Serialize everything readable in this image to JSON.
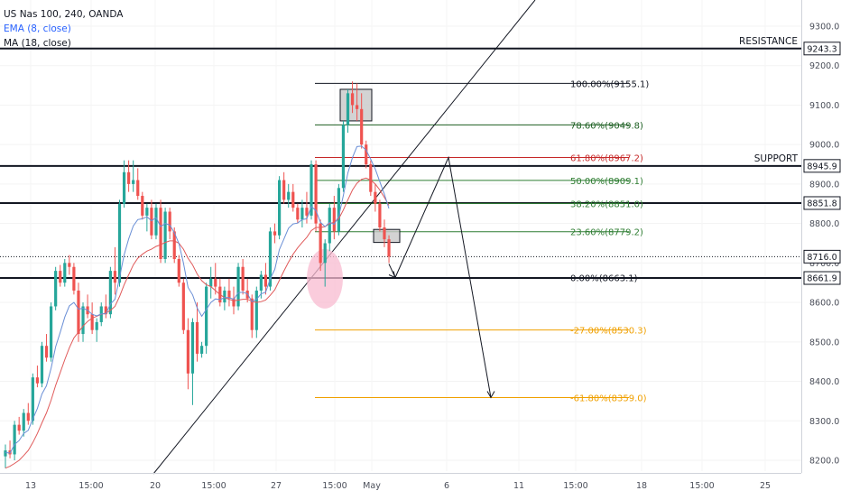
{
  "header": {
    "symbol": "US Nas 100, 240, OANDA",
    "indicator_ema": "EMA (8, close)",
    "indicator_ma": "MA (18, close)"
  },
  "colors": {
    "bull": "#26a69a",
    "bear": "#ef5350",
    "ema": "#6a8fd6",
    "ma": "#e05a5a",
    "fib_100": "#131722",
    "fib_786": "#1b5e20",
    "fib_618": "#c62828",
    "fib_50": "#2e7d32",
    "fib_382": "#2e7d32",
    "fib_236": "#2e7d32",
    "fib_0": "#131722",
    "fib_ext": "#f0a000",
    "highlight": "#f8bbd0"
  },
  "chart_data": {
    "type": "candlestick",
    "y_axis": {
      "ylim": [
        8180,
        9360
      ],
      "ticks": [
        "8200.0",
        "8300.0",
        "8400.0",
        "8500.0",
        "8600.0",
        "8700.0",
        "8800.0",
        "8900.0",
        "9000.0",
        "9100.0",
        "9200.0",
        "9300.0"
      ]
    },
    "x_axis": {
      "ticks": [
        "13",
        "15:00",
        "20",
        "15:00",
        "27",
        "15:00",
        "May",
        "6",
        "11",
        "15:00",
        "18",
        "15:00",
        "25"
      ]
    },
    "price_labels": [
      "9243.3",
      "8945.9",
      "8851.8",
      "8716.0",
      "8661.9"
    ],
    "horizontal_levels": [
      {
        "label": "RESISTANCE",
        "price": 9243.3
      },
      {
        "label": "SUPPORT",
        "price": 8945.9
      },
      {
        "label": "",
        "price": 8851.8
      },
      {
        "label": "",
        "price": 8661.9
      }
    ],
    "last_price": 8716.0,
    "fibonacci": [
      {
        "label": "100.00%(9155.1)",
        "price": 9155.1
      },
      {
        "label": "78.60%(9049.8)",
        "price": 9049.8
      },
      {
        "label": "61.80%(8967.2)",
        "price": 8967.2
      },
      {
        "label": "50.00%(8909.1)",
        "price": 8909.1
      },
      {
        "label": "38.20%(8851.0)",
        "price": 8851.0
      },
      {
        "label": "23.60%(8779.2)",
        "price": 8779.2
      },
      {
        "label": "0.00%(8663.1)",
        "price": 8663.1
      },
      {
        "label": "-27.00%(8530.3)",
        "price": 8530.3
      },
      {
        "label": "-61.80%(8359.0)",
        "price": 8359.0
      }
    ],
    "projection": [
      8663.1,
      8967.2,
      8359.0
    ],
    "candles": [
      [
        8210,
        8240,
        8180,
        8225
      ],
      [
        8225,
        8250,
        8205,
        8215
      ],
      [
        8215,
        8300,
        8200,
        8290
      ],
      [
        8290,
        8310,
        8265,
        8275
      ],
      [
        8275,
        8330,
        8260,
        8320
      ],
      [
        8320,
        8345,
        8290,
        8300
      ],
      [
        8300,
        8420,
        8290,
        8410
      ],
      [
        8410,
        8440,
        8385,
        8395
      ],
      [
        8395,
        8500,
        8385,
        8490
      ],
      [
        8490,
        8520,
        8450,
        8460
      ],
      [
        8460,
        8600,
        8450,
        8590
      ],
      [
        8590,
        8690,
        8580,
        8680
      ],
      [
        8680,
        8695,
        8640,
        8650
      ],
      [
        8650,
        8710,
        8640,
        8700
      ],
      [
        8700,
        8720,
        8670,
        8690
      ],
      [
        8690,
        8700,
        8620,
        8630
      ],
      [
        8630,
        8650,
        8500,
        8520
      ],
      [
        8520,
        8600,
        8500,
        8590
      ],
      [
        8590,
        8620,
        8560,
        8570
      ],
      [
        8570,
        8600,
        8520,
        8530
      ],
      [
        8530,
        8560,
        8500,
        8550
      ],
      [
        8550,
        8600,
        8540,
        8590
      ],
      [
        8590,
        8620,
        8560,
        8570
      ],
      [
        8570,
        8690,
        8560,
        8680
      ],
      [
        8680,
        8740,
        8620,
        8650
      ],
      [
        8650,
        8860,
        8640,
        8850
      ],
      [
        8850,
        8960,
        8840,
        8930
      ],
      [
        8930,
        8960,
        8880,
        8900
      ],
      [
        8900,
        8960,
        8880,
        8910
      ],
      [
        8910,
        8940,
        8860,
        8870
      ],
      [
        8870,
        8880,
        8810,
        8820
      ],
      [
        8820,
        8850,
        8780,
        8840
      ],
      [
        8840,
        8860,
        8760,
        8770
      ],
      [
        8770,
        8850,
        8760,
        8840
      ],
      [
        8840,
        8860,
        8700,
        8710
      ],
      [
        8710,
        8840,
        8700,
        8830
      ],
      [
        8830,
        8840,
        8760,
        8780
      ],
      [
        8780,
        8790,
        8700,
        8710
      ],
      [
        8710,
        8720,
        8640,
        8650
      ],
      [
        8650,
        8660,
        8520,
        8530
      ],
      [
        8530,
        8560,
        8380,
        8420
      ],
      [
        8420,
        8560,
        8340,
        8550
      ],
      [
        8550,
        8600,
        8450,
        8470
      ],
      [
        8470,
        8500,
        8460,
        8490
      ],
      [
        8490,
        8650,
        8470,
        8640
      ],
      [
        8640,
        8690,
        8610,
        8660
      ],
      [
        8660,
        8700,
        8620,
        8640
      ],
      [
        8640,
        8660,
        8590,
        8600
      ],
      [
        8600,
        8640,
        8580,
        8630
      ],
      [
        8630,
        8660,
        8590,
        8610
      ],
      [
        8610,
        8640,
        8570,
        8590
      ],
      [
        8590,
        8700,
        8580,
        8690
      ],
      [
        8690,
        8710,
        8620,
        8630
      ],
      [
        8630,
        8660,
        8600,
        8610
      ],
      [
        8610,
        8620,
        8510,
        8530
      ],
      [
        8530,
        8640,
        8510,
        8630
      ],
      [
        8630,
        8680,
        8610,
        8670
      ],
      [
        8670,
        8700,
        8620,
        8640
      ],
      [
        8640,
        8790,
        8630,
        8780
      ],
      [
        8780,
        8800,
        8750,
        8770
      ],
      [
        8770,
        8920,
        8760,
        8910
      ],
      [
        8910,
        8930,
        8850,
        8860
      ],
      [
        8860,
        8900,
        8840,
        8880
      ],
      [
        8880,
        8900,
        8830,
        8840
      ],
      [
        8840,
        8850,
        8800,
        8810
      ],
      [
        8810,
        8860,
        8790,
        8840
      ],
      [
        8840,
        8880,
        8800,
        8820
      ],
      [
        8820,
        8960,
        8810,
        8950
      ],
      [
        8950,
        8960,
        8780,
        8800
      ],
      [
        8800,
        8810,
        8680,
        8700
      ],
      [
        8700,
        8760,
        8640,
        8750
      ],
      [
        8750,
        8850,
        8730,
        8840
      ],
      [
        8840,
        8870,
        8760,
        8780
      ],
      [
        8780,
        8900,
        8770,
        8890
      ],
      [
        8890,
        9060,
        8880,
        9050
      ],
      [
        9050,
        9140,
        9030,
        9130
      ],
      [
        9130,
        9160,
        9080,
        9100
      ],
      [
        9100,
        9155,
        9060,
        9090
      ],
      [
        9090,
        9130,
        8990,
        9000
      ],
      [
        9000,
        9010,
        8940,
        8950
      ],
      [
        8950,
        8960,
        8870,
        8880
      ],
      [
        8880,
        8900,
        8830,
        8850
      ],
      [
        8850,
        8860,
        8780,
        8790
      ],
      [
        8790,
        8810,
        8740,
        8760
      ],
      [
        8760,
        8770,
        8700,
        8716
      ]
    ],
    "ema": [
      8220,
      8218,
      8240,
      8250,
      8268,
      8276,
      8305,
      8331,
      8368,
      8389,
      8433,
      8488,
      8524,
      8563,
      8591,
      8600,
      8583,
      8585,
      8580,
      8570,
      8566,
      8571,
      8571,
      8596,
      8608,
      8663,
      8721,
      8761,
      8794,
      8810,
      8812,
      8817,
      8807,
      8815,
      8792,
      8800,
      8796,
      8777,
      8749,
      8700,
      8638,
      8619,
      8586,
      8565,
      8582,
      8600,
      8609,
      8607,
      8612,
      8612,
      8608,
      8625,
      8626,
      8622,
      8602,
      8608,
      8622,
      8626,
      8660,
      8684,
      8734,
      8761,
      8788,
      8799,
      8801,
      8810,
      8812,
      8843,
      8833,
      8803,
      8792,
      8803,
      8798,
      8818,
      8870,
      8928,
      8967,
      8995,
      8996,
      8986,
      8963,
      8938,
      8906,
      8874,
      8838
    ],
    "ma": [
      8180,
      8185,
      8192,
      8200,
      8212,
      8225,
      8245,
      8268,
      8295,
      8320,
      8352,
      8390,
      8422,
      8455,
      8485,
      8510,
      8525,
      8540,
      8552,
      8560,
      8565,
      8570,
      8573,
      8580,
      8590,
      8615,
      8645,
      8670,
      8695,
      8712,
      8722,
      8730,
      8735,
      8742,
      8746,
      8752,
      8756,
      8756,
      8750,
      8735,
      8712,
      8695,
      8672,
      8655,
      8645,
      8640,
      8630,
      8620,
      8612,
      8608,
      8604,
      8606,
      8608,
      8608,
      8603,
      8600,
      8602,
      8606,
      8618,
      8632,
      8656,
      8680,
      8702,
      8722,
      8738,
      8752,
      8765,
      8782,
      8790,
      8790,
      8792,
      8800,
      8803,
      8812,
      8834,
      8860,
      8885,
      8902,
      8912,
      8915,
      8910,
      8900,
      8885,
      8866,
      8846
    ]
  }
}
